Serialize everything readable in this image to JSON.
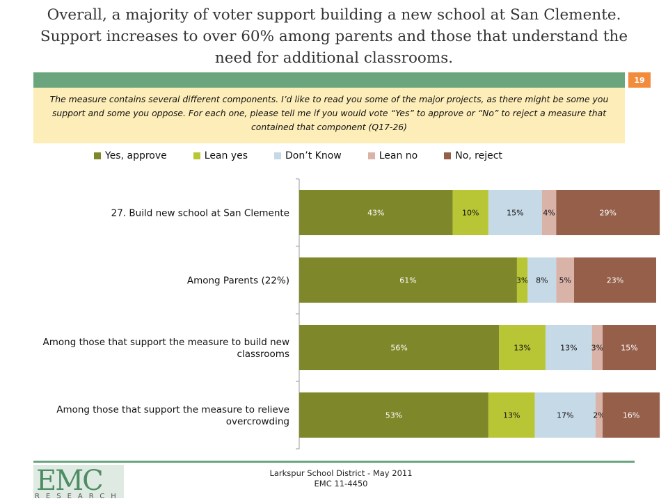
{
  "slide": {
    "title": "Overall, a majority of voter support building a new school at San Clemente.  Support increases to over 60% among parents and those that understand the need for additional classrooms.",
    "page_number": "19",
    "question": "The measure contains several different components.  I’d like to read you some of the major projects, as there might be some you support and some you oppose.  For each one, please tell me if you would vote “Yes” to approve or “No” to reject a measure that contained that component (Q17-26)",
    "footer_line1": "Larkspur School District - May 2011",
    "footer_line2": "EMC 11-4450",
    "logo_text": "EMC",
    "logo_subtext": "RESEARCH"
  },
  "chart_data": {
    "type": "bar",
    "orientation": "horizontal",
    "stacked": true,
    "percent": true,
    "xlim": [
      0,
      100
    ],
    "legend_position": "top",
    "categories": [
      "27. Build new school at San Clemente",
      "Among Parents (22%)",
      "Among those that support the measure to build new classrooms",
      "Among those that support the measure to relieve overcrowding"
    ],
    "category_lines": [
      [
        "27. Build new school at San Clemente"
      ],
      [
        "Among Parents (22%)"
      ],
      [
        "Among those that support the measure to build new",
        "classrooms"
      ],
      [
        "Among those that support the measure to relieve",
        "overcrowding"
      ]
    ],
    "series": [
      {
        "name": "Yes, approve",
        "color": "#7e8729",
        "values": [
          43,
          61,
          56,
          53
        ]
      },
      {
        "name": "Lean yes",
        "color": "#b8c636",
        "values": [
          10,
          3,
          13,
          13
        ]
      },
      {
        "name": "Don’t Know",
        "color": "#c6d9e6",
        "values": [
          15,
          8,
          13,
          17
        ]
      },
      {
        "name": "Lean no",
        "color": "#d9b2a8",
        "values": [
          4,
          5,
          3,
          2
        ]
      },
      {
        "name": "No, reject",
        "color": "#955f4a",
        "values": [
          29,
          23,
          15,
          16
        ]
      }
    ],
    "data_labels": [
      [
        "43%",
        "10%",
        "15%",
        "4%",
        "29%"
      ],
      [
        "61%",
        "3%",
        "8%",
        "5%",
        "23%"
      ],
      [
        "56%",
        "13%",
        "13%",
        "3%",
        "15%"
      ],
      [
        "53%",
        "13%",
        "17%",
        "2%",
        "16%"
      ]
    ]
  }
}
